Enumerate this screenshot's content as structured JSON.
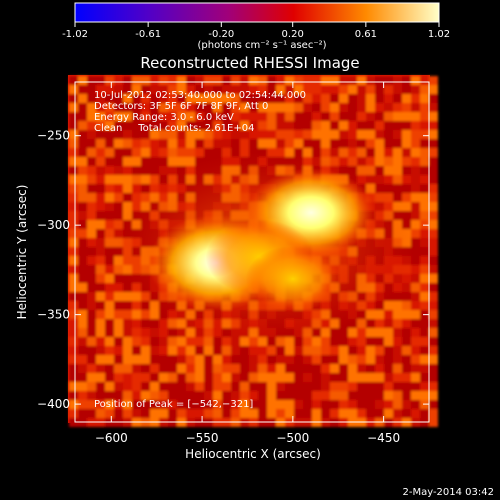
{
  "colorbar": {
    "tick_labels": [
      "-1.02",
      "-0.61",
      "-0.20",
      "0.20",
      "0.61",
      "1.02"
    ],
    "tick_values": [
      -1.02,
      -0.61,
      -0.2,
      0.2,
      0.61,
      1.02
    ],
    "range": [
      -1.02,
      1.02
    ],
    "units_label": "(photons cm⁻² s⁻¹ asec⁻²)"
  },
  "plot": {
    "title": "Reconstructed RHESSI Image",
    "xlabel": "Heliocentric X (arcsec)",
    "ylabel": "Heliocentric Y (arcsec)",
    "x_ticks": [
      -600,
      -550,
      -500,
      -450
    ],
    "x_tick_labels": [
      "−600",
      "−550",
      "−500",
      "−450"
    ],
    "y_ticks": [
      -250,
      -300,
      -350,
      -400
    ],
    "y_tick_labels": [
      "−250",
      "−300",
      "−350",
      "−400"
    ],
    "xlim": [
      -620,
      -425
    ],
    "ylim": [
      -410,
      -220
    ],
    "info_lines": [
      "10-Jul-2012 02:53:40.000 to 02:54:44.000",
      "Detectors: 3F 5F 6F 7F 8F 9F, Att 0",
      "Energy Range: 3.0 - 6.0 keV",
      "Clean     Total counts: 2.61E+04"
    ],
    "peak_label": "Position of Peak = [−542,−321]"
  },
  "footer": {
    "date": "2-May-2014 03:42"
  },
  "chart_data": {
    "type": "heatmap",
    "title": "Reconstructed RHESSI Image",
    "xlabel": "Heliocentric X (arcsec)",
    "ylabel": "Heliocentric Y (arcsec)",
    "xlim": [
      -620,
      -425
    ],
    "ylim": [
      -410,
      -220
    ],
    "colorscale_range": [
      -1.02,
      1.02
    ],
    "peak_position": [
      -542,
      -321
    ],
    "sources": [
      {
        "x": -542,
        "y": -321,
        "intensity": 1.0
      },
      {
        "x": -490,
        "y": -293,
        "intensity": 0.9
      },
      {
        "x": -518,
        "y": -318,
        "intensity": 0.7
      },
      {
        "x": -500,
        "y": -330,
        "intensity": 0.55
      }
    ]
  },
  "colors": {
    "background": "#000000",
    "axis": "#ffffff",
    "frame_red": "#e01e00"
  }
}
